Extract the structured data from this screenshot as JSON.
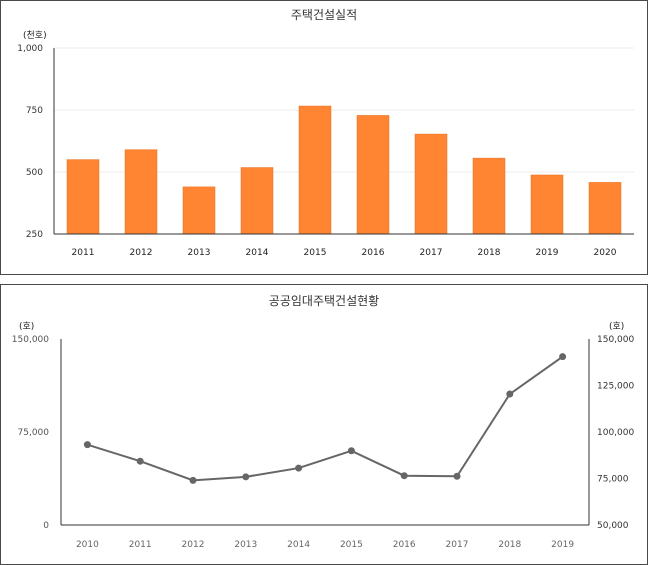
{
  "colors": {
    "bar": "#ff8533",
    "bar_edge": "#e86f1f",
    "line": "#666666",
    "axis": "#333333",
    "grid": "#eeeeee"
  },
  "chart_data": [
    {
      "type": "bar",
      "title": "주택건설실적",
      "unit_label": "(천호)",
      "categories": [
        "2011",
        "2012",
        "2013",
        "2014",
        "2015",
        "2016",
        "2017",
        "2018",
        "2019",
        "2020"
      ],
      "values": [
        550,
        590,
        440,
        518,
        766,
        728,
        653,
        556,
        488,
        458
      ],
      "ylim": [
        250,
        1000
      ],
      "yticks": [
        250,
        500,
        750,
        1000
      ],
      "ytick_labels": [
        "250",
        "500",
        "750",
        "1,000"
      ],
      "grid": true,
      "legend": "none"
    },
    {
      "type": "line",
      "title": "공공임대주택건설현황",
      "unit_label_left": "(호)",
      "unit_label_right": "(호)",
      "x": [
        "2010",
        "2011",
        "2012",
        "2013",
        "2014",
        "2015",
        "2016",
        "2017",
        "2018",
        "2019"
      ],
      "series": [
        {
          "values": [
            93200,
            84300,
            74000,
            75900,
            80600,
            89900,
            76500,
            76200,
            120400,
            140500
          ],
          "axis": "right"
        }
      ],
      "ylim_left": [
        0,
        150000
      ],
      "yticks_left_labels": [
        "0",
        "75,000",
        "150,000"
      ],
      "ylim_right": [
        50000,
        150000
      ],
      "yticks_right_labels": [
        "50,000",
        "75,000",
        "100,000",
        "125,000",
        "150,000"
      ],
      "grid": false,
      "legend": "none"
    }
  ]
}
